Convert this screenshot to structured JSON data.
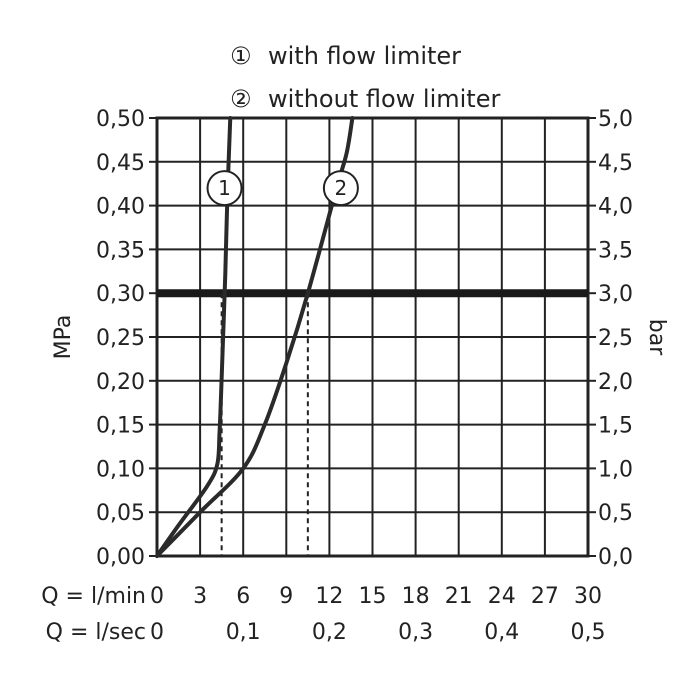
{
  "legend": [
    {
      "symbol": "①",
      "label": "with flow limiter"
    },
    {
      "symbol": "②",
      "label": "without flow limiter"
    }
  ],
  "chart_data": {
    "type": "line",
    "left_axis": {
      "label": "MPa",
      "ticks": [
        "0,00",
        "0,05",
        "0,10",
        "0,15",
        "0,20",
        "0,25",
        "0,30",
        "0,35",
        "0,40",
        "0,45",
        "0,50"
      ],
      "range": [
        0,
        0.5
      ]
    },
    "right_axis": {
      "label": "bar",
      "ticks": [
        "0,0",
        "0,5",
        "1,0",
        "1,5",
        "2,0",
        "2,5",
        "3,0",
        "3,5",
        "4,0",
        "4,5",
        "5,0"
      ],
      "range": [
        0,
        5
      ]
    },
    "x_axis_lmin": {
      "label": "Q = l/min",
      "ticks": [
        "0",
        "3",
        "6",
        "9",
        "12",
        "15",
        "18",
        "21",
        "24",
        "27",
        "30"
      ],
      "range": [
        0,
        30
      ]
    },
    "x_axis_lsec": {
      "label": "Q = l/sec",
      "ticks": [
        "0",
        "0,1",
        "0,2",
        "0,3",
        "0,4",
        "0,5"
      ],
      "tick_values_lmin": [
        0,
        6,
        12,
        18,
        24,
        30
      ]
    },
    "series": [
      {
        "name": "1",
        "x": [
          0,
          1.5,
          3.5,
          4.2,
          4.35,
          4.45,
          4.6,
          4.75,
          4.9,
          5.1
        ],
        "y": [
          0,
          0.035,
          0.08,
          0.105,
          0.14,
          0.18,
          0.25,
          0.32,
          0.41,
          0.5
        ]
      },
      {
        "name": "2",
        "x": [
          0,
          3,
          6,
          7.5,
          9,
          10.5,
          12.5,
          13.2,
          13.6
        ],
        "y": [
          0,
          0.05,
          0.1,
          0.15,
          0.22,
          0.3,
          0.42,
          0.46,
          0.5
        ]
      }
    ],
    "reference_line": {
      "y": 0.3
    },
    "drop_lines": [
      {
        "series": "1",
        "x": 4.5,
        "y": 0.3
      },
      {
        "series": "2",
        "x": 10.5,
        "y": 0.3
      }
    ],
    "series_labels": [
      {
        "text": "1",
        "x": 4.7,
        "y": 0.42
      },
      {
        "text": "2",
        "x": 12.8,
        "y": 0.42
      }
    ],
    "grid": true
  }
}
